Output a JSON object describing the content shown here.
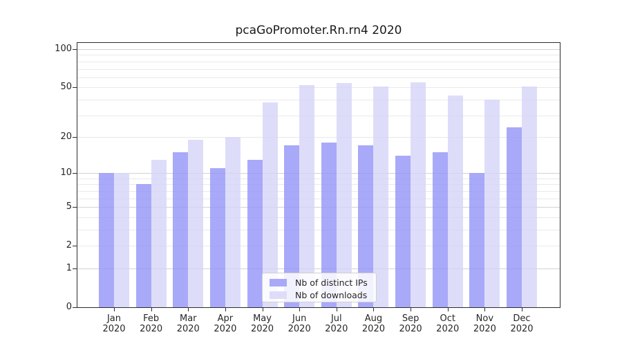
{
  "chart_data": {
    "type": "bar",
    "title": "pcaGoPromoter.Rn.rn4 2020",
    "categories": [
      "Jan",
      "Feb",
      "Mar",
      "Apr",
      "May",
      "Jun",
      "Jul",
      "Aug",
      "Sep",
      "Oct",
      "Nov",
      "Dec"
    ],
    "category_year": "2020",
    "series": [
      {
        "name": "Nb of distinct IPs",
        "color": "rgba(148,148,247,0.8)",
        "solid_color": "#a9a9f9",
        "values": [
          10,
          8,
          15,
          11,
          13,
          17,
          18,
          17,
          14,
          15,
          10,
          24
        ]
      },
      {
        "name": "Nb of downloads",
        "color": "rgba(213,213,249,0.8)",
        "solid_color": "#ddddfa",
        "values": [
          10,
          13,
          19,
          20,
          38,
          52,
          54,
          51,
          55,
          43,
          40,
          51
        ]
      }
    ],
    "yscale": "log1p",
    "ylim": [
      0,
      112
    ],
    "y_tick_labels": [
      "0",
      "1",
      "2",
      "5",
      "10",
      "20",
      "50",
      "100"
    ],
    "y_tick_values": [
      0,
      1,
      2,
      5,
      10,
      20,
      50,
      100
    ],
    "y_minor_gridlines": [
      2,
      3,
      4,
      6,
      7,
      8,
      9,
      20,
      30,
      40,
      50,
      60,
      70,
      80,
      90
    ],
    "y_major_gridlines": [
      1,
      5,
      10,
      100
    ],
    "grid": true,
    "legend_position": "lower center",
    "colors": {
      "spine": "#2b2b2b",
      "text": "#262626",
      "grid_minor": "#e9e9e9",
      "grid_major": "#d2d2d2",
      "background": "#ffffff"
    }
  }
}
